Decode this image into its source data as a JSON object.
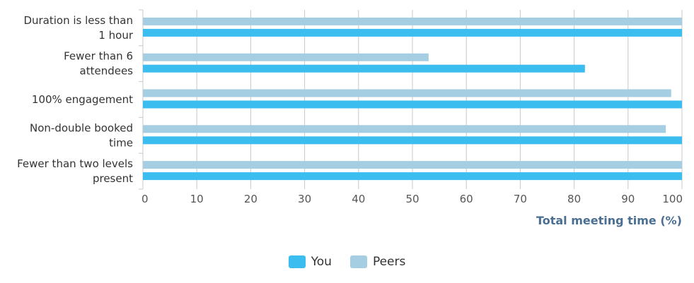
{
  "chart_data": {
    "type": "bar",
    "orientation": "horizontal",
    "categories": [
      [
        "Duration is less than",
        "1 hour"
      ],
      [
        "Fewer than 6",
        "attendees"
      ],
      [
        "100% engagement"
      ],
      [
        "Non-double booked",
        "time"
      ],
      [
        "Fewer than two levels",
        "present"
      ]
    ],
    "series": [
      {
        "name": "Peers",
        "color": "#a6cee3",
        "values": [
          100,
          53,
          98,
          97,
          100
        ]
      },
      {
        "name": "You",
        "color": "#3cbdf0",
        "values": [
          100,
          82,
          100,
          100,
          100
        ]
      }
    ],
    "xlabel": "Total meeting time (%)",
    "xlim": [
      0,
      100
    ],
    "xticks": [
      0,
      10,
      20,
      30,
      40,
      50,
      60,
      70,
      80,
      90,
      100
    ],
    "grid": true,
    "legend_position": "bottom-center"
  },
  "legend": [
    {
      "label": "You",
      "color": "#3cbdf0"
    },
    {
      "label": "Peers",
      "color": "#a6cee3"
    }
  ]
}
